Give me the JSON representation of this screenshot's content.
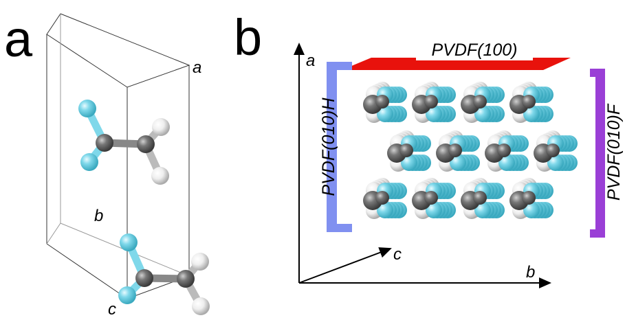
{
  "panel_a": {
    "label": "a",
    "axes": {
      "a": "a",
      "b": "b",
      "c": "c"
    }
  },
  "panel_b": {
    "label": "b",
    "axes": {
      "a": "a",
      "b": "b",
      "c": "c"
    },
    "surfaces": {
      "top": "PVDF(100)",
      "left": "PVDF(010)H",
      "right": "PVDF(010)F"
    }
  }
}
